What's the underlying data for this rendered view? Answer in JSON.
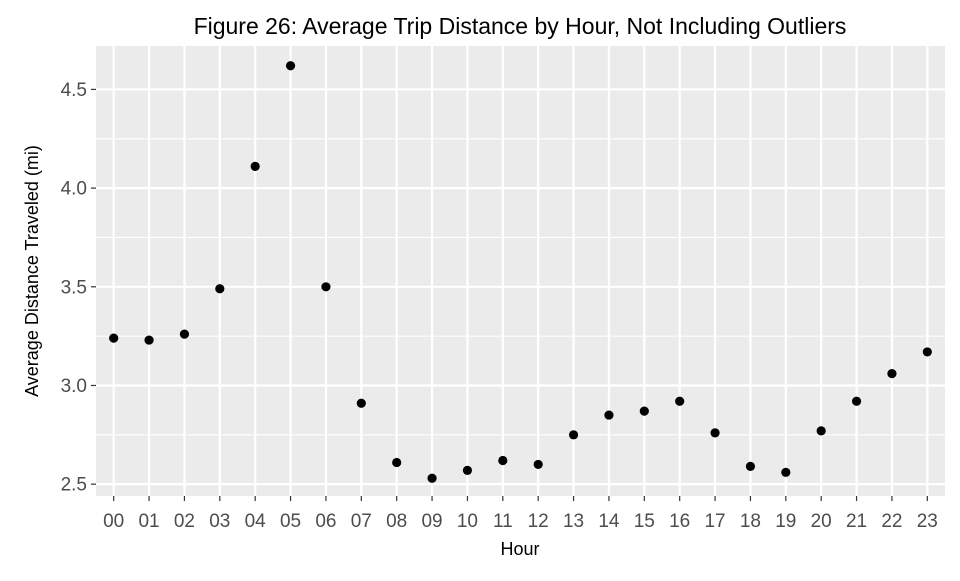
{
  "chart_data": {
    "type": "scatter",
    "title": "Figure 26: Average Trip Distance by Hour, Not Including Outliers",
    "xlabel": "Hour",
    "ylabel": "Average Distance Traveled (mi)",
    "categories": [
      "00",
      "01",
      "02",
      "03",
      "04",
      "05",
      "06",
      "07",
      "08",
      "09",
      "10",
      "11",
      "12",
      "13",
      "14",
      "15",
      "16",
      "17",
      "18",
      "19",
      "20",
      "21",
      "22",
      "23"
    ],
    "values": [
      3.24,
      3.23,
      3.26,
      3.49,
      4.11,
      4.62,
      3.5,
      2.91,
      2.61,
      2.53,
      2.57,
      2.62,
      2.6,
      2.75,
      2.85,
      2.87,
      2.92,
      2.76,
      2.59,
      2.56,
      2.77,
      2.92,
      3.06,
      3.17
    ],
    "ylim": [
      2.44,
      4.72
    ],
    "yticks": [
      2.5,
      3.0,
      3.5,
      4.0,
      4.5
    ],
    "ytick_labels": [
      "2.5",
      "3.0",
      "3.5",
      "4.0",
      "4.5"
    ],
    "grid": true,
    "legend": "none",
    "colors": {
      "panel_background": "#ebebeb",
      "grid_major": "#ffffff",
      "point": "#000000",
      "tick_label": "#4d4d4d",
      "tick_mark": "#333333"
    }
  }
}
